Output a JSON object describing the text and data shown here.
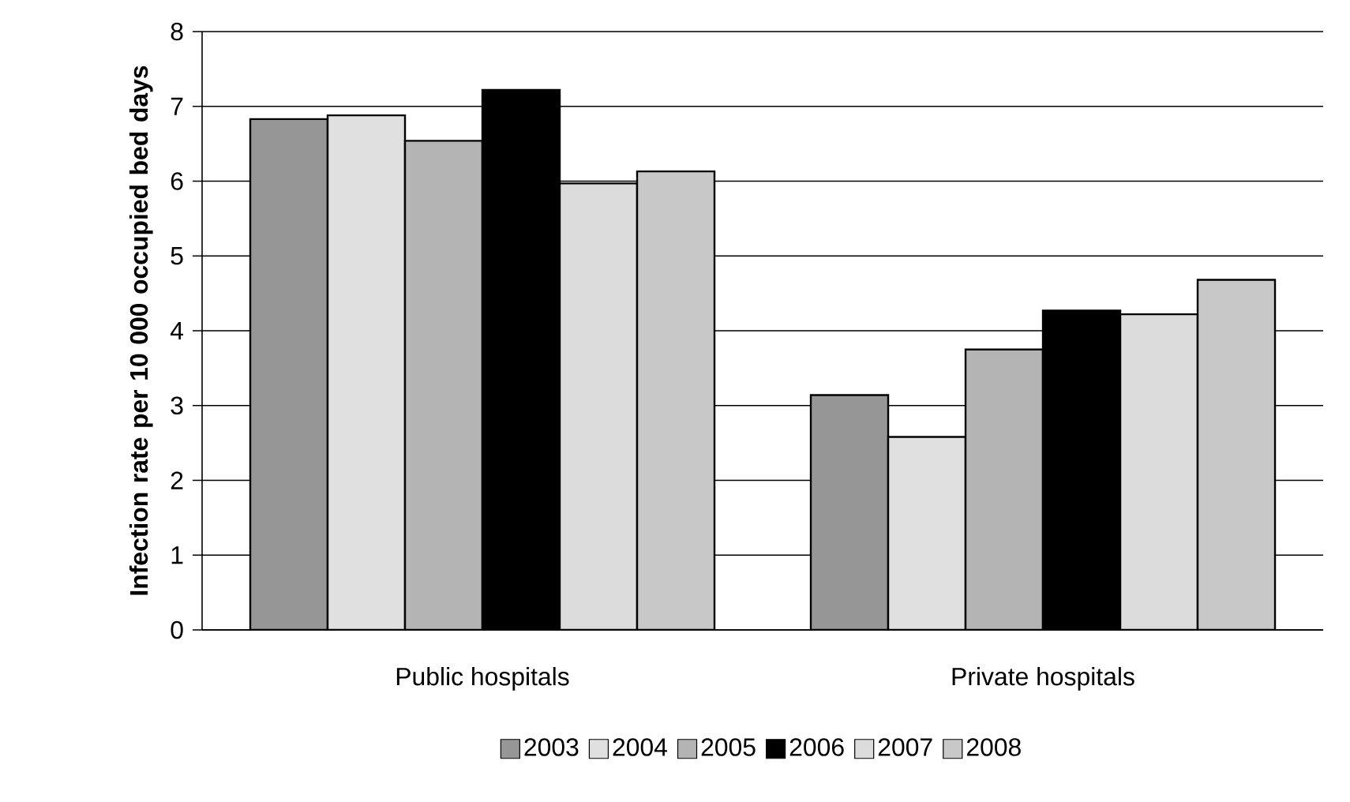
{
  "chart_data": {
    "type": "bar",
    "ylabel": "Infection rate per 10 000 occupied bed days",
    "categories": [
      "Public hospitals",
      "Private hospitals"
    ],
    "series": [
      {
        "name": "2003",
        "color": "#969696",
        "values": [
          6.83,
          3.14
        ]
      },
      {
        "name": "2004",
        "color": "#e0e0e0",
        "values": [
          6.88,
          2.58
        ]
      },
      {
        "name": "2005",
        "color": "#b4b4b4",
        "values": [
          6.54,
          3.75
        ]
      },
      {
        "name": "2006",
        "color": "#000000",
        "values": [
          7.22,
          4.27
        ]
      },
      {
        "name": "2007",
        "color": "#dcdcdc",
        "values": [
          5.97,
          4.22
        ]
      },
      {
        "name": "2008",
        "color": "#c8c8c8",
        "values": [
          6.13,
          4.68
        ]
      }
    ],
    "ylim": [
      0,
      8
    ],
    "yticks": [
      0,
      1,
      2,
      3,
      4,
      5,
      6,
      7,
      8
    ],
    "grid": "y",
    "legend": "bottom"
  }
}
